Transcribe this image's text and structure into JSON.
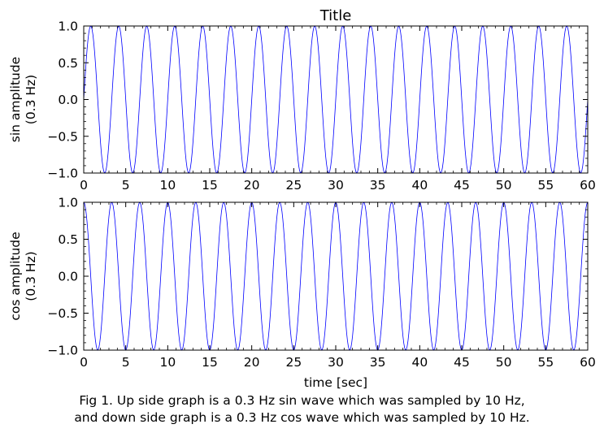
{
  "figure": {
    "caption_line1": "Fig 1. Up side graph is a 0.3 Hz sin wave which was sampled by 10 Hz,",
    "caption_line2": "and down side graph is a 0.3 Hz cos wave which was sampled by 10 Hz."
  },
  "colors": {
    "line": "#0000ff",
    "axes": "#000000",
    "background": "#ffffff"
  },
  "chart_data": [
    {
      "type": "line",
      "title": "Title",
      "ylabel_line1": "sin amplitude",
      "ylabel_line2": "(0.3 Hz)",
      "xlabel": "",
      "function": "sin",
      "frequency_hz": 0.3,
      "sample_rate_hz": 10,
      "xlim": [
        0,
        60
      ],
      "ylim": [
        -1.0,
        1.0
      ],
      "xticks": [
        0,
        5,
        10,
        15,
        20,
        25,
        30,
        35,
        40,
        45,
        50,
        55,
        60
      ],
      "xtick_labels": [
        "0",
        "5",
        "10",
        "15",
        "20",
        "25",
        "30",
        "35",
        "40",
        "45",
        "50",
        "55",
        "60"
      ],
      "yticks": [
        -1.0,
        -0.5,
        0.0,
        0.5,
        1.0
      ],
      "ytick_labels": [
        "−1.0",
        "−0.5",
        "0.0",
        "0.5",
        "1.0"
      ],
      "series": [
        {
          "color": "#0000ff"
        }
      ],
      "grid": false
    },
    {
      "type": "line",
      "title": "",
      "ylabel_line1": "cos amplitude",
      "ylabel_line2": "(0.3 Hz)",
      "xlabel": "time [sec]",
      "function": "cos",
      "frequency_hz": 0.3,
      "sample_rate_hz": 10,
      "xlim": [
        0,
        60
      ],
      "ylim": [
        -1.0,
        1.0
      ],
      "xticks": [
        0,
        5,
        10,
        15,
        20,
        25,
        30,
        35,
        40,
        45,
        50,
        55,
        60
      ],
      "xtick_labels": [
        "0",
        "5",
        "10",
        "15",
        "20",
        "25",
        "30",
        "35",
        "40",
        "45",
        "50",
        "55",
        "60"
      ],
      "yticks": [
        -1.0,
        -0.5,
        0.0,
        0.5,
        1.0
      ],
      "ytick_labels": [
        "−1.0",
        "−0.5",
        "0.0",
        "0.5",
        "1.0"
      ],
      "series": [
        {
          "color": "#0000ff"
        }
      ],
      "grid": false
    }
  ]
}
